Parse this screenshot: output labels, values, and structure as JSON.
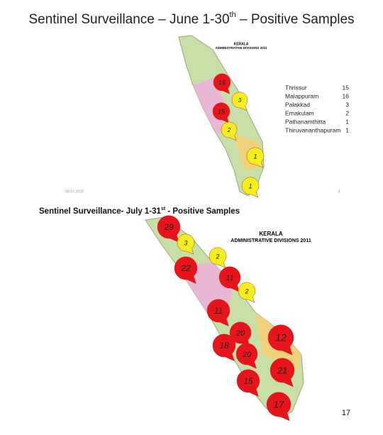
{
  "slide1": {
    "title": "Sentinel Surveillance – June 1-30",
    "title_sup": "th",
    "title_rest": " – Positive Samples",
    "map_title": "KERALA",
    "map_subtitle": "ADMINISTRATIVE DIVISIONS 2011",
    "markers": [
      {
        "value": 16,
        "color": "#e8141b"
      },
      {
        "value": 3,
        "color": "#f5ee1e"
      },
      {
        "value": 15,
        "color": "#e8141b"
      },
      {
        "value": 2,
        "color": "#f5ee1e"
      },
      {
        "value": 1,
        "color": "#f5ee1e"
      },
      {
        "value": 1,
        "color": "#f5ee1e"
      }
    ],
    "table": {
      "rows": [
        [
          "Thrissur",
          15
        ],
        [
          "Malappuram",
          16
        ],
        [
          "Palakkad",
          3
        ],
        [
          "Ernakulam",
          2
        ],
        [
          "Pathanamthitta",
          1
        ],
        [
          "Thiruvananthapuram",
          1
        ]
      ]
    },
    "date": "08-07-2020",
    "page": "3"
  },
  "slide2": {
    "title": "Sentinel Surveillance- July 1-31",
    "title_sup": "st",
    "title_rest": " - Positive Samples",
    "map_title": "KERALA",
    "map_subtitle": "ADMINISTRATIVE DIVISIONS 2011",
    "markers": [
      {
        "value": 29,
        "color": "#e8141b"
      },
      {
        "value": 3,
        "color": "#f5ee1e"
      },
      {
        "value": 2,
        "color": "#f5ee1e"
      },
      {
        "value": 22,
        "color": "#e8141b"
      },
      {
        "value": 11,
        "color": "#e8141b"
      },
      {
        "value": 2,
        "color": "#f5ee1e"
      },
      {
        "value": 11,
        "color": "#e8141b"
      },
      {
        "value": 20,
        "color": "#e8141b"
      },
      {
        "value": 12,
        "color": "#e8141b"
      },
      {
        "value": 18,
        "color": "#e8141b"
      },
      {
        "value": 20,
        "color": "#e8141b"
      },
      {
        "value": 21,
        "color": "#e8141b"
      },
      {
        "value": 15,
        "color": "#e8141b"
      },
      {
        "value": 17,
        "color": "#e8141b"
      }
    ],
    "page": "17"
  }
}
